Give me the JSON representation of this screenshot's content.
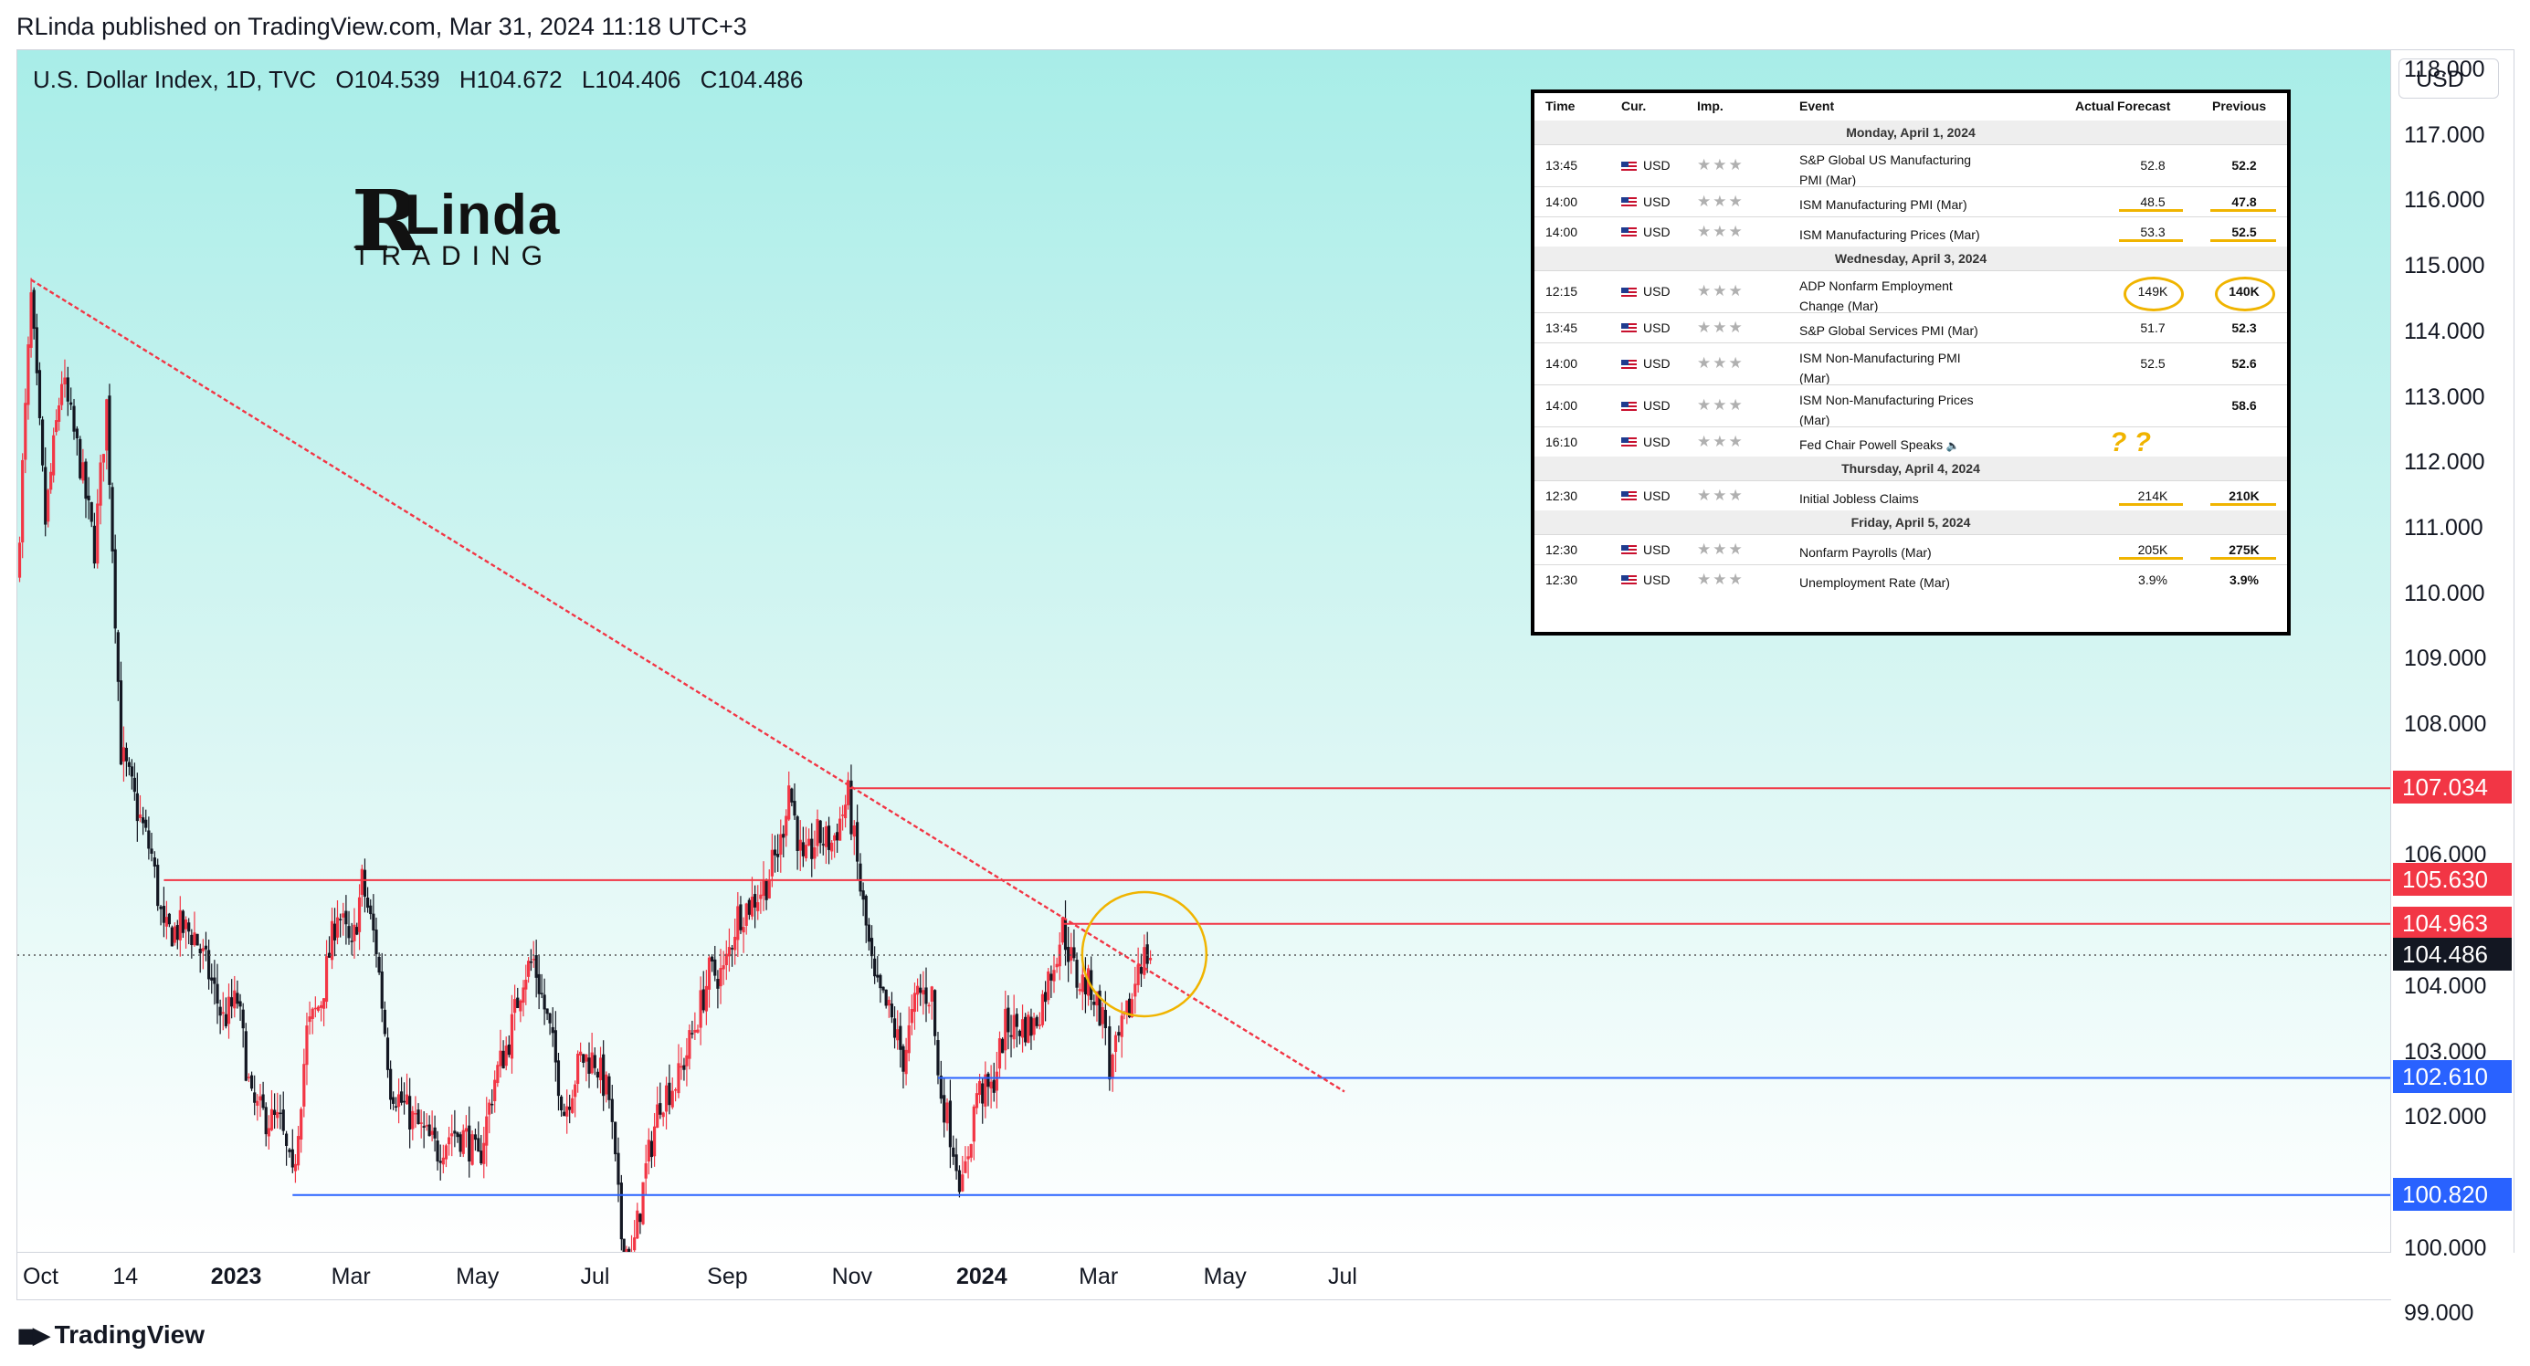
{
  "header": {
    "published_line": "RLinda published on TradingView.com, Mar 31, 2024 11:18 UTC+3"
  },
  "symbol": {
    "name": "U.S. Dollar Index, 1D, TVC",
    "open": "O104.539",
    "high": "H104.672",
    "low": "L104.406",
    "close": "C104.486"
  },
  "currency": "USD",
  "brand": {
    "initial": "R",
    "name": "Linda",
    "tagline": "TRADING"
  },
  "footer": {
    "logo_text": "TradingView"
  },
  "colors": {
    "up": "#f23645",
    "down": "#131722",
    "trendline": "#f23645",
    "resistance": "#f23645",
    "support": "#2962ff",
    "highlight": "#f0b400"
  },
  "chart_data": {
    "type": "candlestick",
    "title": "U.S. Dollar Index, 1D, TVC",
    "ylim": [
      99.0,
      119.0
    ],
    "price_ticks": [
      "118.000",
      "117.000",
      "116.000",
      "115.000",
      "114.000",
      "113.000",
      "112.000",
      "111.000",
      "110.000",
      "109.000",
      "108.000",
      "106.000",
      "104.000",
      "103.000",
      "102.000",
      "100.000",
      "99.000"
    ],
    "time_ticks": [
      {
        "label": "Oct",
        "date": "2022-10-01",
        "year": false
      },
      {
        "label": "14",
        "date": "2022-11-14",
        "year": false
      },
      {
        "label": "2023",
        "date": "2023-01-01",
        "year": true
      },
      {
        "label": "Mar",
        "date": "2023-03-01",
        "year": false
      },
      {
        "label": "May",
        "date": "2023-05-01",
        "year": false
      },
      {
        "label": "Jul",
        "date": "2023-07-01",
        "year": false
      },
      {
        "label": "Sep",
        "date": "2023-09-01",
        "year": false
      },
      {
        "label": "Nov",
        "date": "2023-11-01",
        "year": false
      },
      {
        "label": "2024",
        "date": "2024-01-01",
        "year": true
      },
      {
        "label": "Mar",
        "date": "2024-03-01",
        "year": false
      },
      {
        "label": "May",
        "date": "2024-05-01",
        "year": false
      },
      {
        "label": "Jul",
        "date": "2024-07-01",
        "year": false
      }
    ],
    "price_path": [
      [
        "2022-09-20",
        110.2
      ],
      [
        "2022-09-27",
        114.5
      ],
      [
        "2022-10-04",
        111.1
      ],
      [
        "2022-10-12",
        113.3
      ],
      [
        "2022-10-21",
        112.0
      ],
      [
        "2022-10-28",
        110.7
      ],
      [
        "2022-11-03",
        112.9
      ],
      [
        "2022-11-10",
        107.6
      ],
      [
        "2022-11-18",
        106.7
      ],
      [
        "2022-11-25",
        106.0
      ],
      [
        "2022-12-01",
        104.8
      ],
      [
        "2022-12-09",
        104.9
      ],
      [
        "2022-12-16",
        104.8
      ],
      [
        "2022-12-23",
        104.2
      ],
      [
        "2022-12-30",
        103.5
      ],
      [
        "2023-01-06",
        103.8
      ],
      [
        "2023-01-13",
        102.2
      ],
      [
        "2023-01-20",
        102.0
      ],
      [
        "2023-01-27",
        101.9
      ],
      [
        "2023-02-02",
        101.0
      ],
      [
        "2023-02-09",
        103.3
      ],
      [
        "2023-02-16",
        103.8
      ],
      [
        "2023-02-24",
        105.2
      ],
      [
        "2023-03-03",
        104.5
      ],
      [
        "2023-03-08",
        105.6
      ],
      [
        "2023-03-15",
        104.6
      ],
      [
        "2023-03-22",
        102.5
      ],
      [
        "2023-03-30",
        102.1
      ],
      [
        "2023-04-06",
        101.8
      ],
      [
        "2023-04-14",
        101.5
      ],
      [
        "2023-04-21",
        101.8
      ],
      [
        "2023-04-28",
        101.7
      ],
      [
        "2023-05-04",
        101.3
      ],
      [
        "2023-05-12",
        102.6
      ],
      [
        "2023-05-19",
        103.2
      ],
      [
        "2023-05-26",
        104.2
      ],
      [
        "2023-05-31",
        104.4
      ],
      [
        "2023-06-08",
        103.3
      ],
      [
        "2023-06-15",
        102.1
      ],
      [
        "2023-06-23",
        102.9
      ],
      [
        "2023-06-30",
        102.9
      ],
      [
        "2023-07-07",
        102.3
      ],
      [
        "2023-07-13",
        100.2
      ],
      [
        "2023-07-18",
        99.8
      ],
      [
        "2023-07-25",
        101.2
      ],
      [
        "2023-08-01",
        102.3
      ],
      [
        "2023-08-10",
        102.6
      ],
      [
        "2023-08-18",
        103.4
      ],
      [
        "2023-08-25",
        104.2
      ],
      [
        "2023-09-01",
        104.2
      ],
      [
        "2023-09-08",
        105.1
      ],
      [
        "2023-09-15",
        105.3
      ],
      [
        "2023-09-22",
        105.6
      ],
      [
        "2023-09-29",
        106.2
      ],
      [
        "2023-10-03",
        107.1
      ],
      [
        "2023-10-10",
        105.8
      ],
      [
        "2023-10-17",
        106.3
      ],
      [
        "2023-10-24",
        106.2
      ],
      [
        "2023-11-01",
        106.9
      ],
      [
        "2023-11-07",
        105.5
      ],
      [
        "2023-11-14",
        104.0
      ],
      [
        "2023-11-21",
        103.6
      ],
      [
        "2023-11-28",
        102.9
      ],
      [
        "2023-12-05",
        103.9
      ],
      [
        "2023-12-12",
        103.9
      ],
      [
        "2023-12-15",
        102.6
      ],
      [
        "2023-12-21",
        101.8
      ],
      [
        "2023-12-27",
        100.9
      ],
      [
        "2024-01-03",
        102.4
      ],
      [
        "2024-01-10",
        102.4
      ],
      [
        "2024-01-17",
        103.4
      ],
      [
        "2024-01-24",
        103.4
      ],
      [
        "2024-01-31",
        103.4
      ],
      [
        "2024-02-07",
        104.1
      ],
      [
        "2024-02-14",
        104.9
      ],
      [
        "2024-02-21",
        104.1
      ],
      [
        "2024-02-28",
        104.0
      ],
      [
        "2024-03-06",
        103.4
      ],
      [
        "2024-03-08",
        102.7
      ],
      [
        "2024-03-14",
        103.3
      ],
      [
        "2024-03-19",
        103.8
      ],
      [
        "2024-03-22",
        104.4
      ],
      [
        "2024-03-28",
        104.5
      ]
    ],
    "trendline": {
      "from": [
        "2022-09-27",
        114.8
      ],
      "to": [
        "2024-07-01",
        102.4
      ]
    },
    "levels": [
      {
        "price": 107.034,
        "label": "107.034",
        "type": "resistance",
        "from": "2023-11-01"
      },
      {
        "price": 105.63,
        "label": "105.630",
        "type": "resistance",
        "from": "2022-12-01"
      },
      {
        "price": 104.963,
        "label": "104.963",
        "type": "resistance",
        "from": "2024-02-14"
      },
      {
        "price": 102.61,
        "label": "102.610",
        "type": "support",
        "from": "2023-12-15"
      },
      {
        "price": 100.82,
        "label": "100.820",
        "type": "support",
        "from": "2023-02-02"
      }
    ],
    "current_price": {
      "price": 104.486,
      "label": "104.486"
    },
    "highlight_circle": {
      "date": "2024-03-25",
      "price": 104.5
    }
  },
  "calendar": {
    "headers": {
      "time": "Time",
      "cur": "Cur.",
      "imp": "Imp.",
      "event": "Event",
      "actual": "Actual",
      "forecast": "Forecast",
      "previous": "Previous"
    },
    "stars": "★★★",
    "currency": "USD",
    "rows": [
      {
        "kind": "day",
        "label": "Monday, April 1, 2024"
      },
      {
        "kind": "event",
        "time": "13:45",
        "event": "S&P Global US Manufacturing\nPMI (Mar)",
        "forecast": "52.8",
        "previous": "52.2"
      },
      {
        "kind": "event",
        "time": "14:00",
        "event": "ISM Manufacturing PMI (Mar)",
        "forecast": "48.5",
        "previous": "47.8"
      },
      {
        "kind": "event",
        "time": "14:00",
        "event": "ISM Manufacturing Prices (Mar)",
        "forecast": "53.3",
        "previous": "52.5"
      },
      {
        "kind": "day",
        "label": "Wednesday, April 3, 2024"
      },
      {
        "kind": "event",
        "time": "12:15",
        "event": "ADP Nonfarm Employment\nChange (Mar)",
        "forecast": "149K",
        "previous": "140K"
      },
      {
        "kind": "event",
        "time": "13:45",
        "event": "S&P Global Services PMI (Mar)",
        "forecast": "51.7",
        "previous": "52.3"
      },
      {
        "kind": "event",
        "time": "14:00",
        "event": "ISM Non-Manufacturing PMI\n(Mar)",
        "forecast": "52.5",
        "previous": "52.6"
      },
      {
        "kind": "event",
        "time": "14:00",
        "event": "ISM Non-Manufacturing Prices\n(Mar)",
        "forecast": "",
        "previous": "58.6"
      },
      {
        "kind": "event",
        "time": "16:10",
        "event": "Fed Chair Powell Speaks",
        "forecast": "",
        "previous": "",
        "speaker": true
      },
      {
        "kind": "day",
        "label": "Thursday, April 4, 2024"
      },
      {
        "kind": "event",
        "time": "12:30",
        "event": "Initial Jobless Claims",
        "forecast": "214K",
        "previous": "210K"
      },
      {
        "kind": "day",
        "label": "Friday, April 5, 2024"
      },
      {
        "kind": "event",
        "time": "12:30",
        "event": "Nonfarm Payrolls (Mar)",
        "forecast": "205K",
        "previous": "275K"
      },
      {
        "kind": "event",
        "time": "12:30",
        "event": "Unemployment Rate (Mar)",
        "forecast": "3.9%",
        "previous": "3.9%"
      }
    ],
    "question_marks": "? ?"
  }
}
